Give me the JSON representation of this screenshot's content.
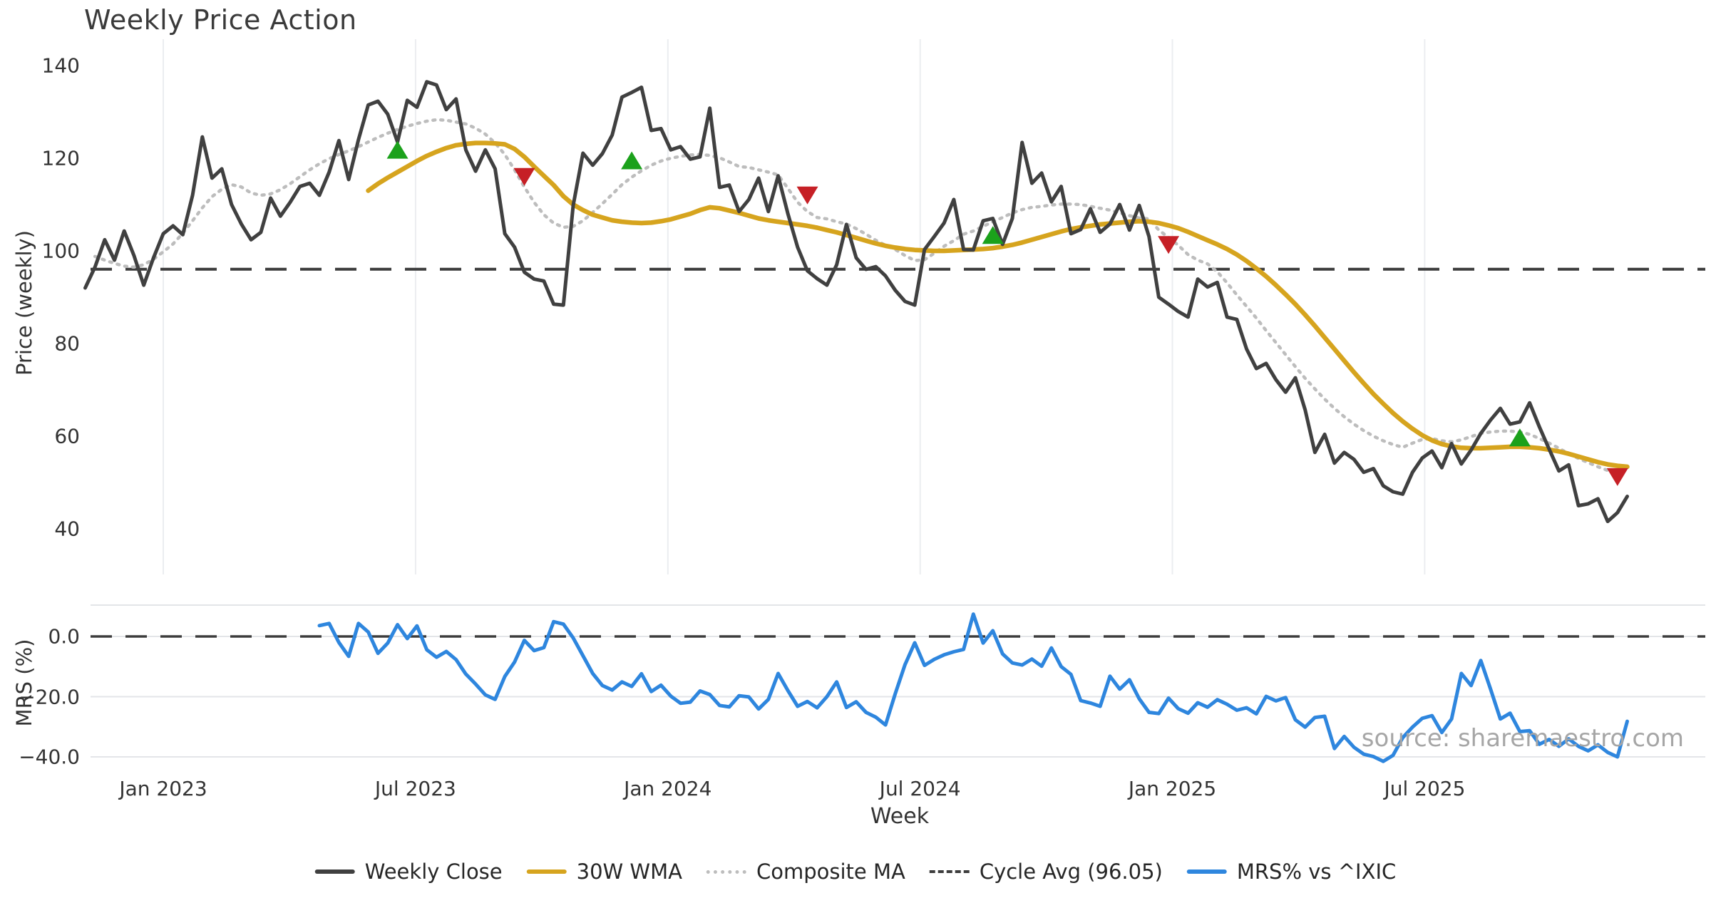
{
  "title": "Weekly Price Action",
  "xlabel": "Week",
  "watermark": "source: sharemaestro.com",
  "colors": {
    "close": "#404040",
    "wma": "#D6A41E",
    "composite": "#bdbdbd",
    "cycle": "#3d3d3d",
    "mrs": "#2E86DE",
    "marker_up": "#1BA11B",
    "marker_down": "#C62026",
    "grid": "#ebedf0",
    "text": "#333333",
    "title_color": "#3a3a3a",
    "watermark_color": "#a6a6a6"
  },
  "price_panel": {
    "ylabel": "Price (weekly)",
    "tick_labels": [
      "140",
      "120",
      "100",
      "80",
      "60",
      "40"
    ],
    "tick_values": [
      140,
      120,
      100,
      80,
      60,
      40
    ]
  },
  "mrs_panel": {
    "ylabel": "MRS (%)",
    "tick_labels": [
      "0.0",
      "−20.0",
      "−40.0"
    ],
    "tick_values": [
      0,
      -20,
      -40
    ]
  },
  "x_ticks": {
    "labels": [
      "Jan 2023",
      "Jul 2023",
      "Jan 2024",
      "Jul 2024",
      "Jan 2025",
      "Jul 2025"
    ],
    "weeks": [
      0,
      25.85,
      51.7,
      77.55,
      103.4,
      129.25
    ]
  },
  "legend": {
    "items": [
      {
        "label": "Weekly Close",
        "style": "solid",
        "color_key": "close"
      },
      {
        "label": "30W WMA",
        "style": "solid",
        "color_key": "wma"
      },
      {
        "label": "Composite MA",
        "style": "dotted",
        "color_key": "composite"
      },
      {
        "label": "Cycle Avg (96.05)",
        "style": "dashed",
        "color_key": "cycle"
      },
      {
        "label": "MRS% vs ^IXIC",
        "style": "solid",
        "color_key": "mrs"
      }
    ]
  },
  "chart_data": [
    {
      "type": "line",
      "panel": "price",
      "title": "Weekly Price Action",
      "xlabel": "Week",
      "ylabel": "Price (weekly)",
      "x_unit": "weeks relative to Jan 2023 tick",
      "x_range_weeks": [
        -8,
        150
      ],
      "ylim": [
        33,
        146
      ],
      "grid": "vertical-only",
      "legend_position": "bottom",
      "cycle_avg": 96.05,
      "series": [
        {
          "name": "Weekly Close",
          "start_week": -8,
          "values": [
            92,
            96.5,
            102.4,
            98,
            104.3,
            99,
            92.6,
            98.5,
            103.7,
            105.4,
            103.5,
            112,
            124.6,
            115.7,
            117.7,
            110,
            105.8,
            102.4,
            104,
            111.4,
            107.5,
            110.5,
            113.9,
            114.6,
            112,
            117,
            123.8,
            115.4,
            124,
            131.5,
            132.3,
            129.5,
            123.5,
            132.5,
            131,
            136.5,
            135.8,
            130.5,
            132.8,
            121.8,
            117.2,
            121.8,
            117.7,
            103.7,
            100.8,
            95.4,
            93.9,
            93.5,
            88.5,
            88.3,
            109.8,
            121.1,
            118.5,
            121,
            125,
            133.2,
            134.2,
            135.3,
            126,
            126.4,
            121.8,
            122.5,
            119.8,
            120.3,
            130.8,
            113.7,
            114.2,
            108.5,
            111.1,
            115.7,
            108.5,
            116.2,
            108,
            100.8,
            95.7,
            94,
            92.6,
            97,
            105.7,
            98.5,
            96,
            96.6,
            94.6,
            91.5,
            89.1,
            88.3,
            100.3,
            103.1,
            106,
            111.1,
            100.3,
            100.2,
            106.5,
            107,
            101.4,
            107,
            123.4,
            114.6,
            116.8,
            110.6,
            113.9,
            103.7,
            104.6,
            109.1,
            104,
            105.8,
            110,
            104.5,
            109.8,
            103.1,
            90,
            88.5,
            86.9,
            85.7,
            93.9,
            92.2,
            93.2,
            85.7,
            85.2,
            78.8,
            74.6,
            75.7,
            72.2,
            69.5,
            72.6,
            65.7,
            56.5,
            60.4,
            54.2,
            56.5,
            55,
            52.2,
            53,
            49.3,
            48,
            47.5,
            52.2,
            55.3,
            56.8,
            53.2,
            58.4,
            54,
            57,
            60.6,
            63.5,
            66,
            62.6,
            63.1,
            67.2,
            62,
            57.2,
            52.5,
            53.8,
            45,
            45.4,
            46.5,
            41.6,
            43.5,
            47
          ]
        },
        {
          "name": "30W WMA",
          "start_week": 21,
          "values": [
            113,
            114.5,
            115.8,
            117,
            118.2,
            119.4,
            120.5,
            121.4,
            122.2,
            122.8,
            123.1,
            123.3,
            123.3,
            123.2,
            123,
            122,
            120.3,
            118.2,
            116.2,
            114.2,
            111.8,
            110,
            108.8,
            107.8,
            107.2,
            106.6,
            106.3,
            106.1,
            106,
            106.1,
            106.4,
            106.8,
            107.4,
            108,
            108.8,
            109.4,
            109.2,
            108.7,
            108.2,
            107.6,
            107,
            106.6,
            106.3,
            106,
            105.7,
            105.4,
            105,
            104.5,
            104,
            103.4,
            102.8,
            102.2,
            101.6,
            101.1,
            100.7,
            100.4,
            100.2,
            100.1,
            100,
            100,
            100.1,
            100.2,
            100.3,
            100.4,
            100.6,
            100.9,
            101.3,
            101.8,
            102.4,
            103,
            103.6,
            104.2,
            104.7,
            105.1,
            105.4,
            105.7,
            105.9,
            106.1,
            106.3,
            106.4,
            106.3,
            106,
            105.5,
            104.9,
            104.1,
            103.2,
            102.3,
            101.4,
            100.4,
            99.2,
            97.8,
            96.2,
            94.5,
            92.6,
            90.6,
            88.5,
            86.2,
            83.8,
            81.3,
            78.8,
            76.3,
            73.8,
            71.4,
            69.1,
            67,
            65,
            63.2,
            61.6,
            60.2,
            59.1,
            58.3,
            57.8,
            57.5,
            57.4,
            57.4,
            57.5,
            57.6,
            57.7,
            57.7,
            57.6,
            57.4,
            57.1,
            56.7,
            56.2,
            55.6,
            55,
            54.4,
            53.9,
            53.6,
            53.4
          ]
        },
        {
          "name": "Composite MA",
          "start_week": -7,
          "values": [
            98.8,
            98,
            97.3,
            96.7,
            96.5,
            97,
            98.2,
            99.8,
            101.5,
            103.8,
            106.5,
            109.3,
            111.7,
            113.3,
            114.3,
            113.8,
            112.5,
            112,
            112.3,
            113.2,
            114.5,
            116,
            117.5,
            118.8,
            119.9,
            120.8,
            121.6,
            122.5,
            123.5,
            124.5,
            125.4,
            126.2,
            126.9,
            127.5,
            128,
            128.3,
            128.2,
            127.8,
            127.4,
            126.5,
            125.2,
            123.3,
            120.8,
            117.5,
            113.8,
            110.5,
            107.8,
            106,
            105.1,
            105.3,
            106.5,
            108.3,
            110.2,
            112.2,
            114.3,
            115.9,
            117.3,
            118.5,
            119.4,
            120,
            120.4,
            120.7,
            120.8,
            120.6,
            120.1,
            119.2,
            118.2,
            118,
            117.5,
            117,
            116.4,
            113.5,
            110.5,
            108.5,
            107.2,
            106.9,
            106.3,
            105.8,
            104.8,
            103.6,
            102.3,
            101.2,
            100.3,
            99,
            97.9,
            98.1,
            99.5,
            101,
            102.2,
            103.6,
            104.3,
            105.3,
            106.3,
            107.2,
            108.2,
            108.9,
            109.4,
            109.6,
            109.9,
            110.1,
            110.1,
            110,
            109.6,
            109.2,
            108.8,
            108.2,
            107.6,
            107.1,
            106.9,
            104.5,
            102.9,
            101.2,
            99.2,
            98,
            97.2,
            95.5,
            93.1,
            90.5,
            88,
            85.5,
            82.8,
            80.2,
            77.6,
            75,
            72.5,
            70.2,
            68,
            66,
            64.2,
            62.6,
            61.2,
            60,
            59,
            58.2,
            57.6,
            58.5,
            59.3,
            59.5,
            59,
            58.8,
            59.2,
            59.9,
            60.6,
            60.9,
            61.1,
            61.1,
            60.9,
            60.4,
            59.5,
            58.5,
            57.4,
            56.2,
            55.2,
            54.3,
            53.4,
            52.6,
            51.9,
            51.4
          ]
        }
      ],
      "markers": {
        "up": [
          {
            "week": 24,
            "price": 121.6
          },
          {
            "week": 48,
            "price": 119.3
          },
          {
            "week": 85,
            "price": 103.2
          },
          {
            "week": 139,
            "price": 59.5
          }
        ],
        "down": [
          {
            "week": 37,
            "price": 116.2
          },
          {
            "week": 66,
            "price": 112.2
          },
          {
            "week": 103,
            "price": 101.5
          },
          {
            "week": 149,
            "price": 51.4
          }
        ]
      }
    },
    {
      "type": "line",
      "panel": "mrs",
      "ylabel": "MRS (%)",
      "x_unit": "weeks relative to Jan 2023 tick",
      "ylim": [
        -43.5,
        10.4
      ],
      "zero_line": 0,
      "grid": "horizontal-only",
      "series": [
        {
          "name": "MRS% vs ^IXIC",
          "start_week": 16,
          "values": [
            3.6,
            4.3,
            -2,
            -6.6,
            4.3,
            1.5,
            -5.6,
            -2.2,
            3.9,
            -0.7,
            3.5,
            -4.4,
            -6.9,
            -5,
            -7.7,
            -12.5,
            -15.8,
            -19.4,
            -20.9,
            -13.3,
            -8.5,
            -1.3,
            -4.7,
            -3.7,
            4.9,
            4.1,
            -0.5,
            -6.4,
            -12.3,
            -16.3,
            -17.8,
            -15.1,
            -16.6,
            -12.4,
            -18.3,
            -16.2,
            -19.8,
            -22.2,
            -21.8,
            -18.1,
            -19.3,
            -22.9,
            -23.4,
            -19.7,
            -20.1,
            -24.1,
            -20.9,
            -12.3,
            -18,
            -23.2,
            -21.6,
            -23.7,
            -20,
            -15.1,
            -23.6,
            -21.7,
            -25.2,
            -26.8,
            -29.4,
            -19,
            -9.4,
            -2.1,
            -9.6,
            -7.6,
            -6.1,
            -5.1,
            -4.3,
            7.4,
            -2.2,
            1.9,
            -5.8,
            -8.8,
            -9.5,
            -7.5,
            -9.9,
            -3.8,
            -10,
            -12.6,
            -21.3,
            -22.1,
            -23.2,
            -13.2,
            -17.5,
            -14.4,
            -20.7,
            -25.2,
            -25.6,
            -20.5,
            -24,
            -25.5,
            -22,
            -23.5,
            -21,
            -22.5,
            -24.5,
            -23.7,
            -25.7,
            -19.9,
            -21.4,
            -20.3,
            -27.7,
            -30.1,
            -26.9,
            -26.5,
            -37.2,
            -33.2,
            -36.8,
            -39.1,
            -39.9,
            -41.5,
            -39.5,
            -33.6,
            -30.1,
            -27.2,
            -26.3,
            -31.9,
            -27.4,
            -12.3,
            -16.3,
            -8,
            -17.5,
            -27.4,
            -25.5,
            -31.6,
            -31.3,
            -35.8,
            -34.2,
            -36.5,
            -34,
            -36.5,
            -38,
            -36,
            -38.5,
            -40,
            -28.2
          ]
        }
      ]
    }
  ]
}
